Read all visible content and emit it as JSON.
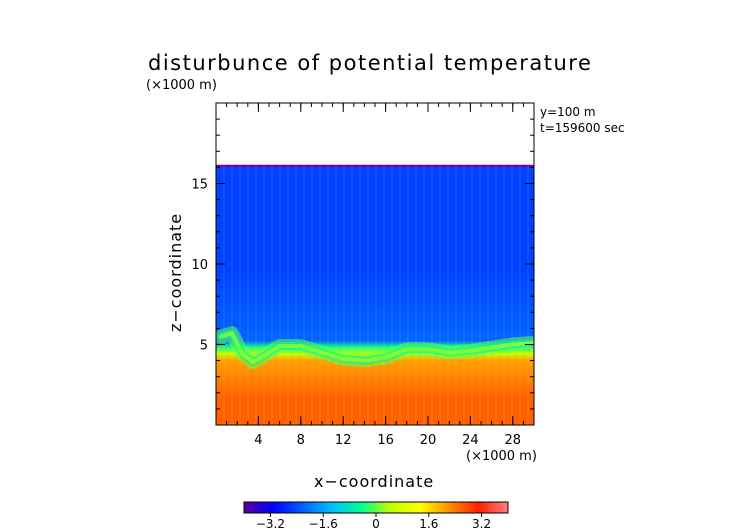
{
  "chart_data": {
    "type": "heatmap",
    "title": "disturbunce of potential temperature",
    "scale_note": "(×1000 m)",
    "xlabel": "x−coordinate",
    "ylabel": "z−coordinate",
    "x_unit_note": "(×1000 m)",
    "info_lines": [
      "y=100 m",
      "t=159600 sec"
    ],
    "xlim": [
      0,
      30
    ],
    "ylim": [
      0,
      20
    ],
    "x_ticks": [
      4,
      8,
      12,
      16,
      20,
      24,
      28
    ],
    "x_tick_labels": [
      "4",
      "8",
      "12",
      "16",
      "20",
      "24",
      "28"
    ],
    "y_ticks": [
      5,
      10,
      15
    ],
    "y_tick_labels": [
      "5",
      "10",
      "15"
    ],
    "colorbar": {
      "range": [
        -4.0,
        4.0
      ],
      "ticks": [
        -3.2,
        -1.6,
        0,
        1.6,
        3.2
      ],
      "tick_labels": [
        "−3.2",
        "−1.6",
        "0",
        "1.6",
        "3.2"
      ],
      "colors": [
        "#5a00a0",
        "#0000ff",
        "#0060ff",
        "#00c0ff",
        "#00ff90",
        "#c0ff00",
        "#ffff00",
        "#ff9000",
        "#ff2000",
        "#ff8080"
      ]
    },
    "field": {
      "data_top_z": 16.1,
      "upper_layer_value": -2.5,
      "lower_layer_value": 2.6,
      "interface_height": [
        {
          "x": 0.5,
          "z": 5.5
        },
        {
          "x": 1.5,
          "z": 5.7
        },
        {
          "x": 2.5,
          "z": 4.4
        },
        {
          "x": 3.5,
          "z": 3.9
        },
        {
          "x": 4.5,
          "z": 4.3
        },
        {
          "x": 6,
          "z": 4.9
        },
        {
          "x": 8,
          "z": 4.9
        },
        {
          "x": 10,
          "z": 4.5
        },
        {
          "x": 12,
          "z": 4.1
        },
        {
          "x": 14,
          "z": 4.0
        },
        {
          "x": 16,
          "z": 4.2
        },
        {
          "x": 18,
          "z": 4.7
        },
        {
          "x": 20,
          "z": 4.7
        },
        {
          "x": 22,
          "z": 4.5
        },
        {
          "x": 24,
          "z": 4.6
        },
        {
          "x": 26,
          "z": 4.8
        },
        {
          "x": 28,
          "z": 5.0
        },
        {
          "x": 30,
          "z": 5.1
        }
      ]
    }
  }
}
